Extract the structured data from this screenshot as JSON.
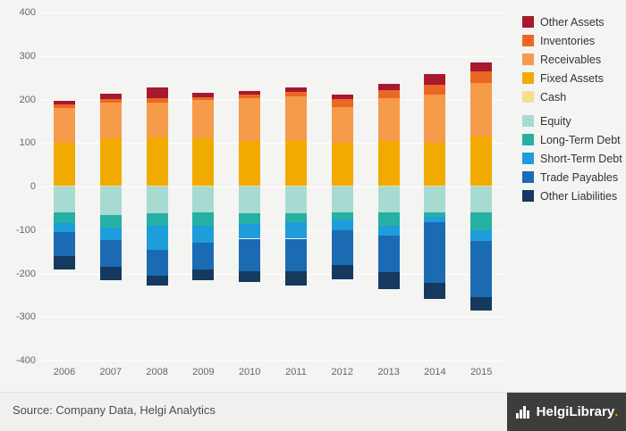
{
  "chart_data": {
    "type": "bar",
    "stacked": true,
    "categories": [
      "2006",
      "2007",
      "2008",
      "2009",
      "2010",
      "2011",
      "2012",
      "2013",
      "2014",
      "2015"
    ],
    "series": [
      {
        "name": "Cash",
        "color": "#f7dd93",
        "values": [
          3,
          3,
          3,
          3,
          3,
          3,
          3,
          3,
          3,
          3
        ]
      },
      {
        "name": "Fixed Assets",
        "color": "#f1ab00",
        "values": [
          97,
          107,
          109,
          107,
          102,
          104,
          97,
          102,
          97,
          112
        ]
      },
      {
        "name": "Receivables",
        "color": "#f59b49",
        "values": [
          80,
          82,
          80,
          88,
          98,
          100,
          83,
          98,
          112,
          122
        ]
      },
      {
        "name": "Inventories",
        "color": "#eb6723",
        "values": [
          8,
          10,
          12,
          8,
          8,
          10,
          18,
          18,
          22,
          28
        ]
      },
      {
        "name": "Other Assets",
        "color": "#a6192e",
        "values": [
          8,
          11,
          24,
          10,
          9,
          10,
          11,
          14,
          24,
          20
        ]
      },
      {
        "name": "Equity",
        "color": "#a7dbd2",
        "values": [
          -60,
          -65,
          -62,
          -60,
          -62,
          -62,
          -60,
          -60,
          -60,
          -60
        ]
      },
      {
        "name": "Long-Term Debt",
        "color": "#27b0a4",
        "values": [
          -25,
          -30,
          -28,
          -30,
          -25,
          -20,
          -15,
          -30,
          -10,
          -40
        ]
      },
      {
        "name": "Short-Term Debt",
        "color": "#1e9ddb",
        "values": [
          -20,
          -28,
          -55,
          -40,
          -33,
          -38,
          -25,
          -22,
          -12,
          -25
        ]
      },
      {
        "name": "Trade Payables",
        "color": "#1b6bb3",
        "values": [
          -55,
          -62,
          -60,
          -60,
          -75,
          -75,
          -80,
          -85,
          -140,
          -130
        ]
      },
      {
        "name": "Other Liabilities",
        "color": "#15395f",
        "values": [
          -30,
          -30,
          -23,
          -25,
          -25,
          -32,
          -33,
          -38,
          -36,
          -30
        ]
      }
    ],
    "ylim": [
      -400,
      400
    ],
    "ytick_step": 100,
    "grid": true,
    "legend_position": "right",
    "legend_order": [
      "Other Assets",
      "Inventories",
      "Receivables",
      "Fixed Assets",
      "Cash",
      "Equity",
      "Long-Term Debt",
      "Short-Term Debt",
      "Trade Payables",
      "Other Liabilities"
    ],
    "legend_gap_after": "Cash",
    "title": "",
    "xlabel": "",
    "ylabel": ""
  },
  "footer": {
    "source": "Source: Company Data, Helgi Analytics",
    "logo": {
      "part1": "Helgi",
      "part2": "Library",
      "dot": "."
    }
  }
}
